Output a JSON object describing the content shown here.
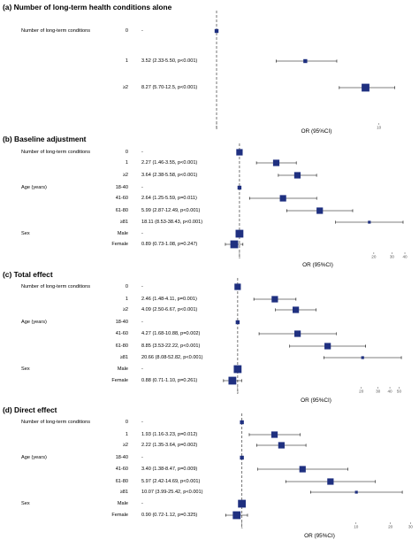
{
  "chart_data": [
    {
      "type": "forest",
      "panel": "(a)",
      "title": "(a) Number of long-term health conditions alone",
      "xlabel": "OR (95%CI)",
      "xscale": "log",
      "xlim": [
        1,
        15
      ],
      "ticks": [
        {
          "v": 1,
          "label": "1"
        },
        {
          "v": 10,
          "label": "10"
        }
      ],
      "rows": [
        {
          "group": "Number of long-term conditions",
          "level": "0",
          "text": "-",
          "or": 1,
          "lo": 1,
          "hi": 1,
          "marker": "small"
        },
        {
          "group": "",
          "level": "1",
          "text": "3.52 (2.33-5.50, p<0.001)",
          "or": 3.52,
          "lo": 2.33,
          "hi": 5.5,
          "marker": "small"
        },
        {
          "group": "",
          "level": "≥2",
          "text": "8.27 (5.70-12.5, p<0.001)",
          "or": 8.27,
          "lo": 5.7,
          "hi": 12.5,
          "marker": "big"
        }
      ]
    },
    {
      "type": "forest",
      "panel": "(b)",
      "title": "(b) Baseline adjustment",
      "xlabel": "OR (95%CI)",
      "xscale": "log",
      "xlim": [
        0.6,
        45
      ],
      "ticks": [
        {
          "v": 1,
          "label": "1"
        },
        {
          "v": 20,
          "label": "20"
        },
        {
          "v": 30,
          "label": "30"
        },
        {
          "v": 40,
          "label": "40"
        }
      ],
      "rows": [
        {
          "group": "Number of long-term conditions",
          "level": "0",
          "text": "-",
          "or": 1,
          "lo": 1,
          "hi": 1,
          "marker": "med"
        },
        {
          "group": "",
          "level": "1",
          "text": "2.27 (1.46-3.55, p<0.001)",
          "or": 2.27,
          "lo": 1.46,
          "hi": 3.55,
          "marker": "med"
        },
        {
          "group": "",
          "level": "≥2",
          "text": "3.64 (2.38-5.58, p<0.001)",
          "or": 3.64,
          "lo": 2.38,
          "hi": 5.58,
          "marker": "med"
        },
        {
          "group": "Age (years)",
          "level": "18-40",
          "text": "-",
          "or": 1,
          "lo": 1,
          "hi": 1,
          "marker": "small"
        },
        {
          "group": "",
          "level": "41-60",
          "text": "2.64 (1.25-5.59, p=0.011)",
          "or": 2.64,
          "lo": 1.25,
          "hi": 5.59,
          "marker": "med"
        },
        {
          "group": "",
          "level": "61-80",
          "text": "5.99 (2.87-12.49, p<0.001)",
          "or": 5.99,
          "lo": 2.87,
          "hi": 12.49,
          "marker": "med"
        },
        {
          "group": "",
          "level": "≥81",
          "text": "18.11 (8.53-38.43, p<0.001)",
          "or": 18.11,
          "lo": 8.53,
          "hi": 38.43,
          "marker": "tiny"
        },
        {
          "group": "Sex",
          "level": "Male",
          "text": "-",
          "or": 1,
          "lo": 1,
          "hi": 1,
          "marker": "big"
        },
        {
          "group": "",
          "level": "Female",
          "text": "0.89 (0.73-1.08, p=0.247)",
          "or": 0.89,
          "lo": 0.73,
          "hi": 1.08,
          "marker": "big"
        }
      ]
    },
    {
      "type": "forest",
      "panel": "(c)",
      "title": "(c) Total effect",
      "xlabel": "OR (95%CI)",
      "xscale": "log",
      "xlim": [
        0.6,
        60
      ],
      "ticks": [
        {
          "v": 1,
          "label": "1"
        },
        {
          "v": 20,
          "label": "20"
        },
        {
          "v": 30,
          "label": "30"
        },
        {
          "v": 40,
          "label": "40"
        },
        {
          "v": 50,
          "label": "50"
        }
      ],
      "rows": [
        {
          "group": "Number of long-term conditions",
          "level": "0",
          "text": "-",
          "or": 1,
          "lo": 1,
          "hi": 1,
          "marker": "med"
        },
        {
          "group": "",
          "level": "1",
          "text": "2.46 (1.48-4.11, p=0.001)",
          "or": 2.46,
          "lo": 1.48,
          "hi": 4.11,
          "marker": "med"
        },
        {
          "group": "",
          "level": "≥2",
          "text": "4.09 (2.50-6.67, p<0.001)",
          "or": 4.09,
          "lo": 2.5,
          "hi": 6.67,
          "marker": "med"
        },
        {
          "group": "Age (years)",
          "level": "18-40",
          "text": "-",
          "or": 1,
          "lo": 1,
          "hi": 1,
          "marker": "small"
        },
        {
          "group": "",
          "level": "41-60",
          "text": "4.27 (1.68-10.88, p=0.002)",
          "or": 4.27,
          "lo": 1.68,
          "hi": 10.88,
          "marker": "med"
        },
        {
          "group": "",
          "level": "61-80",
          "text": "8.85 (3.53-22.22, p<0.001)",
          "or": 8.85,
          "lo": 3.53,
          "hi": 22.22,
          "marker": "med"
        },
        {
          "group": "",
          "level": "≥81",
          "text": "20.66 (8.08-52.82, p<0.001)",
          "or": 20.66,
          "lo": 8.08,
          "hi": 52.82,
          "marker": "tiny"
        },
        {
          "group": "Sex",
          "level": "Male",
          "text": "-",
          "or": 1,
          "lo": 1,
          "hi": 1,
          "marker": "big"
        },
        {
          "group": "",
          "level": "Female",
          "text": "0.88 (0.71-1.10, p=0.261)",
          "or": 0.88,
          "lo": 0.71,
          "hi": 1.1,
          "marker": "big"
        }
      ]
    },
    {
      "type": "forest",
      "panel": "(d)",
      "title": "(d) Direct effect",
      "xlabel": "OR (95%CI)",
      "xscale": "log",
      "xlim": [
        0.6,
        32
      ],
      "ticks": [
        {
          "v": 1,
          "label": "1"
        },
        {
          "v": 10,
          "label": "10"
        },
        {
          "v": 20,
          "label": "20"
        },
        {
          "v": 30,
          "label": "30"
        }
      ],
      "rows": [
        {
          "group": "Number of long-term conditions",
          "level": "0",
          "text": "-",
          "or": 1,
          "lo": 1,
          "hi": 1,
          "marker": "small"
        },
        {
          "group": "",
          "level": "1",
          "text": "1.93 (1.16-3.23, p=0.012)",
          "or": 1.93,
          "lo": 1.16,
          "hi": 3.23,
          "marker": "med"
        },
        {
          "group": "",
          "level": "≥2",
          "text": "2.22 (1.35-3.64, p=0.002)",
          "or": 2.22,
          "lo": 1.35,
          "hi": 3.64,
          "marker": "med"
        },
        {
          "group": "Age (years)",
          "level": "18-40",
          "text": "-",
          "or": 1,
          "lo": 1,
          "hi": 1,
          "marker": "small"
        },
        {
          "group": "",
          "level": "41-60",
          "text": "3.40 (1.38-8.47, p=0.009)",
          "or": 3.4,
          "lo": 1.38,
          "hi": 8.47,
          "marker": "med"
        },
        {
          "group": "",
          "level": "61-80",
          "text": "5.97 (2.42-14.69, p<0.001)",
          "or": 5.97,
          "lo": 2.42,
          "hi": 14.69,
          "marker": "med"
        },
        {
          "group": "",
          "level": "≥81",
          "text": "10.07 (3.99-25.42, p<0.001)",
          "or": 10.07,
          "lo": 3.99,
          "hi": 25.42,
          "marker": "tiny"
        },
        {
          "group": "Sex",
          "level": "Male",
          "text": "-",
          "or": 1,
          "lo": 1,
          "hi": 1,
          "marker": "big"
        },
        {
          "group": "",
          "level": "Female",
          "text": "0.90 (0.72-1.12, p=0.325)",
          "or": 0.9,
          "lo": 0.72,
          "hi": 1.12,
          "marker": "big"
        }
      ]
    }
  ],
  "colors": {
    "marker": "#1f3080",
    "line": "#000000",
    "ref_line": "#555555",
    "tick_text": "#555555"
  }
}
